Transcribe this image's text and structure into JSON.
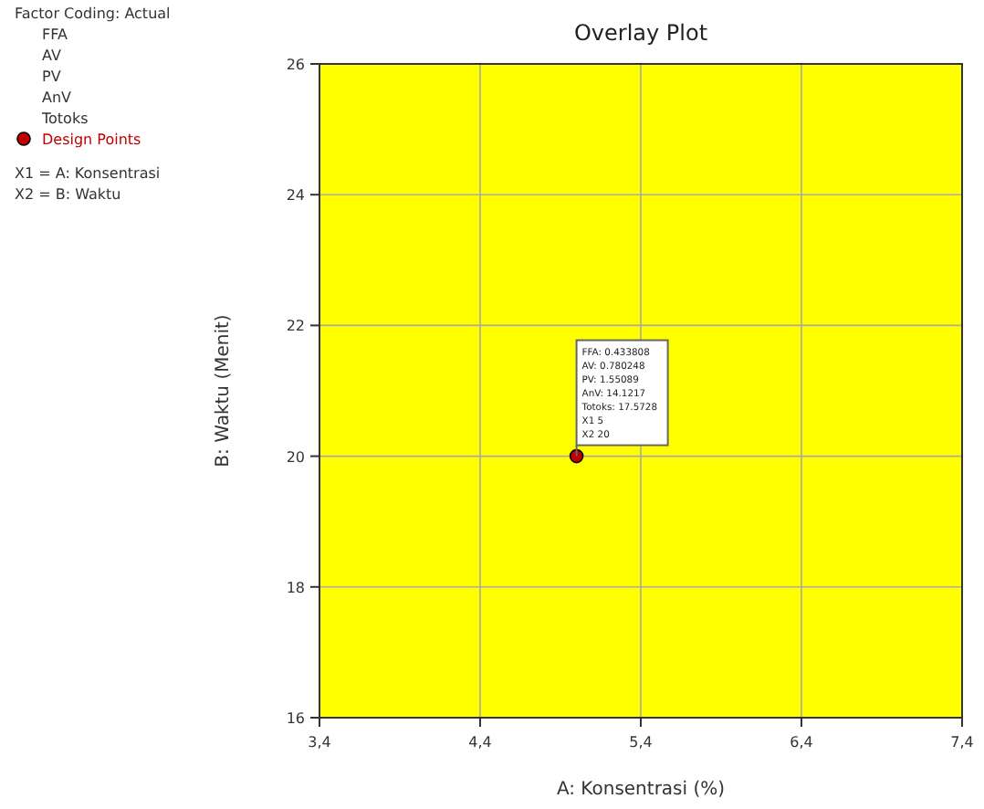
{
  "chart_data": {
    "type": "scatter",
    "title": "Overlay Plot",
    "xlabel": "A: Konsentrasi (%)",
    "ylabel": "B: Waktu (Menit)",
    "legend_title": "Factor Coding: Actual",
    "x": [
      5
    ],
    "series": [
      {
        "name": "Design Points",
        "color": "#c00000",
        "values": [
          20
        ]
      }
    ],
    "xlim": [
      3.4,
      7.4
    ],
    "xticks": [
      {
        "value": 3.4,
        "label": "3,4"
      },
      {
        "value": 4.4,
        "label": "4,4"
      },
      {
        "value": 5.4,
        "label": "5,4"
      },
      {
        "value": 6.4,
        "label": "6,4"
      },
      {
        "value": 7.4,
        "label": "7,4"
      }
    ],
    "ylim": [
      16,
      26
    ],
    "yticks": [
      16,
      18,
      20,
      22,
      24,
      26
    ],
    "bands": [
      {
        "axis": "x",
        "from": 3.4,
        "to": 7.4,
        "color": "#ffff00"
      }
    ],
    "annotations": [
      "FFA",
      "AV",
      "PV",
      "AnV",
      "Totoks",
      "X1 = A: Konsentrasi",
      "X2 = B: Waktu",
      {
        "text": "FFA:  0.433808\nAV:  0.780248\nPV:  1.55089\nAnV:  14.1217\nTotoks:  17.5728\nX1  5\nX2  20",
        "x": 5,
        "y": 20
      }
    ],
    "grid": true,
    "legend": "top left",
    "marker": "circle"
  }
}
